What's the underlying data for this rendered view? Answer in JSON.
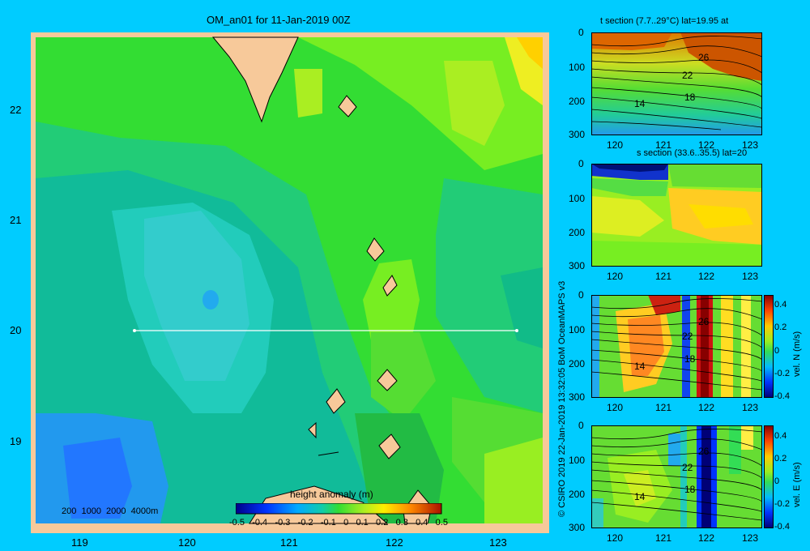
{
  "map": {
    "title": "OM_an01 for 11-Jan-2019 00Z",
    "lat_labels": [
      "22",
      "21",
      "20",
      "19"
    ],
    "lon_labels": [
      "119",
      "120",
      "121",
      "122",
      "123"
    ],
    "depth_contours_label": "200  1000  2000  4000m",
    "colorbar": {
      "title": "height anomaly (m)",
      "ticks": [
        "-0.5",
        "-0.4",
        "-0.3",
        "-0.2",
        "-0.1",
        "0",
        "0.1",
        "0.2",
        "0.3",
        "0.4",
        "0.5"
      ]
    },
    "section_line": {
      "lat": 20,
      "lon_start": 119.5,
      "lon_end": 123.2
    }
  },
  "panels": [
    {
      "title": "t section (7.7..29°C) lat=19.95 at",
      "depth_ticks": [
        "0",
        "100",
        "200",
        "300"
      ],
      "lon_ticks": [
        "120",
        "121",
        "122",
        "123"
      ],
      "contour_labels": [
        "26",
        "22",
        "18",
        "14"
      ]
    },
    {
      "title": "s section (33.6..35.5) lat=20",
      "depth_ticks": [
        "0",
        "100",
        "200",
        "300"
      ],
      "lon_ticks": [
        "120",
        "121",
        "122",
        "123"
      ],
      "contour_labels": []
    },
    {
      "title": "",
      "depth_ticks": [
        "0",
        "100",
        "200",
        "300"
      ],
      "lon_ticks": [
        "120",
        "121",
        "122",
        "123"
      ],
      "contour_labels": [
        "26",
        "22",
        "18",
        "14"
      ],
      "colorbar_label": "vel. N (m/s)",
      "colorbar_ticks": [
        "0.4",
        "0.2",
        "0",
        "-0.2",
        "-0.4"
      ]
    },
    {
      "title": "",
      "depth_ticks": [
        "0",
        "100",
        "200",
        "300"
      ],
      "lon_ticks": [
        "120",
        "121",
        "122",
        "123"
      ],
      "contour_labels": [
        "26",
        "22",
        "18",
        "14"
      ],
      "colorbar_label": "vel. E (m/s)",
      "colorbar_ticks": [
        "0.4",
        "0.2",
        "0",
        "-0.2",
        "-0.4"
      ]
    }
  ],
  "credit": "© CSIRO 2019   22-Jan-2019 13:32:05 BoM OceanMAPS v3"
}
